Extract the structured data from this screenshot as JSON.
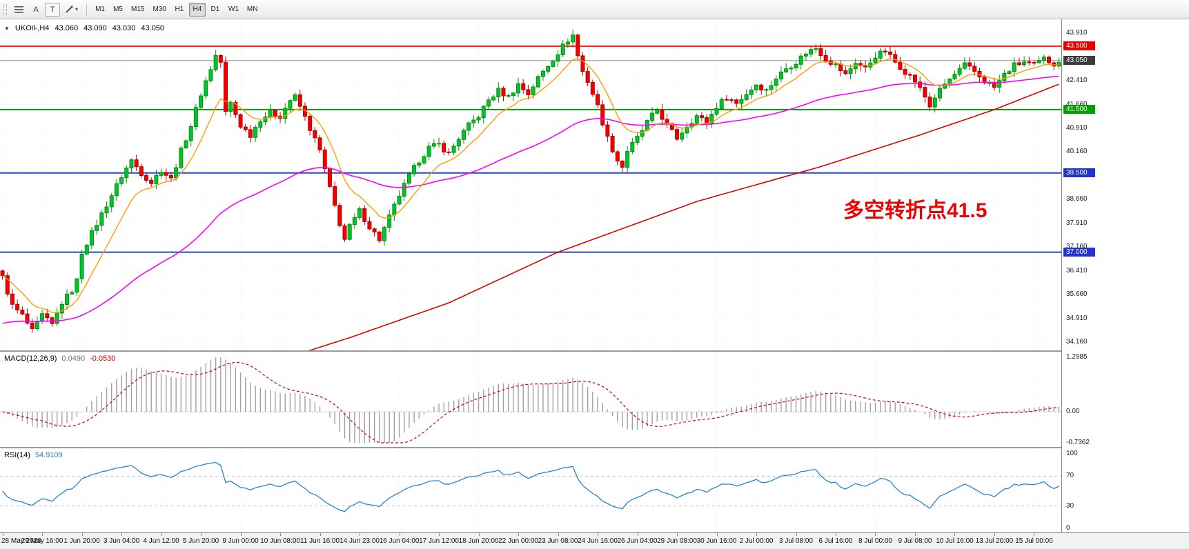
{
  "icons": {
    "symbol_dropdown": "▼",
    "chevron_down": "▾"
  },
  "toolbar": {
    "arrow_label": "A",
    "text_label": "T",
    "timeframes": [
      "M1",
      "M5",
      "M15",
      "M30",
      "H1",
      "H4",
      "D1",
      "W1",
      "MN"
    ],
    "active_timeframe": "H4"
  },
  "main_chart": {
    "symbol_info": {
      "symbol": "UKOil-,H4",
      "open": "43.060",
      "high": "43.090",
      "low": "43.030",
      "close": "43.050"
    },
    "annotation": {
      "text": "多空转折点41.5",
      "color": "#ee0000"
    },
    "price_axis": {
      "min": 33.9,
      "max": 44.35,
      "ticks": [
        {
          "p": 43.91,
          "t": "43.910"
        },
        {
          "p": 43.16,
          "t": "43.160"
        },
        {
          "p": 42.41,
          "t": "42.410"
        },
        {
          "p": 41.66,
          "t": "41.660"
        },
        {
          "p": 40.91,
          "t": "40.910"
        },
        {
          "p": 40.16,
          "t": "40.160"
        },
        {
          "p": 39.41,
          "t": "39.410"
        },
        {
          "p": 38.66,
          "t": "38.660"
        },
        {
          "p": 37.91,
          "t": "37.910"
        },
        {
          "p": 37.16,
          "t": "37.160"
        },
        {
          "p": 36.41,
          "t": "36.410"
        },
        {
          "p": 35.66,
          "t": "35.660"
        },
        {
          "p": 34.91,
          "t": "34.910"
        },
        {
          "p": 34.16,
          "t": "34.160"
        }
      ]
    },
    "hlines": [
      {
        "price": 43.5,
        "color": "#ff2020",
        "w": 2
      },
      {
        "price": 43.05,
        "color": "#909090",
        "w": 1
      },
      {
        "price": 41.5,
        "color": "#00a000",
        "w": 2
      },
      {
        "price": 39.5,
        "color": "#2244dd",
        "w": 2
      },
      {
        "price": 37.0,
        "color": "#2244dd",
        "w": 2
      }
    ],
    "badges": [
      {
        "text": "43.500",
        "price": 43.5,
        "color": "#e80000"
      },
      {
        "text": "43.050",
        "price": 43.05,
        "color": "#3c3c3c"
      },
      {
        "text": "41.500",
        "price": 41.5,
        "color": "#00a000"
      },
      {
        "text": "39.500",
        "price": 39.5,
        "color": "#2233cc"
      },
      {
        "text": "37.000",
        "price": 37.0,
        "color": "#2233cc"
      }
    ],
    "candle_colors": {
      "up_fill": "#00c437",
      "up_stroke": "#089000",
      "down_fill": "#f40000",
      "down_stroke": "#b40000"
    },
    "ma_fast": {
      "period": 10,
      "color": "#ff9c00"
    },
    "ma_mid": {
      "period": 60,
      "seed": 34.7,
      "color": "#ff00ff"
    },
    "ma_slow": {
      "color": "#dc0000",
      "anchors": [
        [
          58,
          33.7
        ],
        [
          70,
          34.3
        ],
        [
          90,
          35.4
        ],
        [
          112,
          37.0
        ],
        [
          140,
          38.6
        ],
        [
          165,
          39.7
        ],
        [
          185,
          40.7
        ],
        [
          200,
          41.5
        ],
        [
          213,
          42.3
        ]
      ]
    },
    "candles": {
      "count": 214,
      "anchors": [
        [
          0,
          36.2
        ],
        [
          2,
          35.3
        ],
        [
          4,
          35.0
        ],
        [
          6,
          34.5
        ],
        [
          8,
          35.0
        ],
        [
          10,
          34.7
        ],
        [
          12,
          35.4
        ],
        [
          14,
          35.8
        ],
        [
          15,
          36.1
        ],
        [
          16,
          37.0
        ],
        [
          18,
          37.6
        ],
        [
          20,
          38.2
        ],
        [
          22,
          38.8
        ],
        [
          24,
          39.4
        ],
        [
          26,
          39.9
        ],
        [
          28,
          39.5
        ],
        [
          30,
          39.2
        ],
        [
          32,
          39.6
        ],
        [
          34,
          39.3
        ],
        [
          36,
          40.2
        ],
        [
          38,
          41.0
        ],
        [
          40,
          42.0
        ],
        [
          42,
          42.8
        ],
        [
          43,
          43.2
        ],
        [
          44,
          43.0
        ],
        [
          45,
          41.4
        ],
        [
          46,
          41.7
        ],
        [
          48,
          41.0
        ],
        [
          50,
          40.7
        ],
        [
          52,
          41.2
        ],
        [
          54,
          41.4
        ],
        [
          56,
          41.3
        ],
        [
          58,
          41.8
        ],
        [
          59,
          41.9
        ],
        [
          60,
          41.6
        ],
        [
          62,
          40.9
        ],
        [
          64,
          40.2
        ],
        [
          66,
          39.0
        ],
        [
          68,
          37.9
        ],
        [
          69,
          37.4
        ],
        [
          70,
          37.8
        ],
        [
          72,
          38.3
        ],
        [
          74,
          37.8
        ],
        [
          76,
          37.4
        ],
        [
          78,
          38.1
        ],
        [
          80,
          38.8
        ],
        [
          82,
          39.4
        ],
        [
          84,
          39.9
        ],
        [
          86,
          40.3
        ],
        [
          88,
          40.4
        ],
        [
          90,
          40.1
        ],
        [
          92,
          40.6
        ],
        [
          94,
          41.0
        ],
        [
          96,
          41.3
        ],
        [
          98,
          41.8
        ],
        [
          100,
          42.1
        ],
        [
          102,
          41.9
        ],
        [
          104,
          42.3
        ],
        [
          106,
          42.0
        ],
        [
          108,
          42.5
        ],
        [
          110,
          42.9
        ],
        [
          112,
          43.3
        ],
        [
          114,
          43.7
        ],
        [
          115,
          43.85
        ],
        [
          116,
          43.2
        ],
        [
          117,
          42.7
        ],
        [
          118,
          42.4
        ],
        [
          120,
          41.6
        ],
        [
          122,
          40.6
        ],
        [
          124,
          39.9
        ],
        [
          125,
          39.7
        ],
        [
          126,
          40.2
        ],
        [
          128,
          40.6
        ],
        [
          130,
          41.1
        ],
        [
          132,
          41.5
        ],
        [
          134,
          41.0
        ],
        [
          136,
          40.6
        ],
        [
          138,
          41.0
        ],
        [
          140,
          41.3
        ],
        [
          142,
          41.1
        ],
        [
          144,
          41.6
        ],
        [
          146,
          41.9
        ],
        [
          148,
          41.7
        ],
        [
          150,
          42.0
        ],
        [
          152,
          42.3
        ],
        [
          154,
          42.1
        ],
        [
          156,
          42.5
        ],
        [
          158,
          42.8
        ],
        [
          160,
          43.0
        ],
        [
          162,
          43.3
        ],
        [
          164,
          43.45
        ],
        [
          166,
          43.1
        ],
        [
          168,
          42.9
        ],
        [
          170,
          42.6
        ],
        [
          172,
          43.0
        ],
        [
          174,
          42.8
        ],
        [
          176,
          43.2
        ],
        [
          178,
          43.35
        ],
        [
          180,
          43.0
        ],
        [
          182,
          42.7
        ],
        [
          184,
          42.4
        ],
        [
          186,
          41.9
        ],
        [
          187,
          41.6
        ],
        [
          188,
          41.9
        ],
        [
          190,
          42.3
        ],
        [
          192,
          42.6
        ],
        [
          194,
          42.9
        ],
        [
          196,
          42.7
        ],
        [
          198,
          42.4
        ],
        [
          200,
          42.2
        ],
        [
          202,
          42.6
        ],
        [
          204,
          42.9
        ],
        [
          206,
          43.0
        ],
        [
          208,
          42.9
        ],
        [
          210,
          43.1
        ],
        [
          212,
          42.95
        ],
        [
          213,
          43.05
        ]
      ]
    }
  },
  "macd_panel": {
    "label": "MACD(12,26,9)",
    "value_main": "0.0490",
    "value_signal": "-0.0530",
    "params": {
      "fast": 12,
      "slow": 26,
      "signal": 9
    },
    "axis": {
      "max": 1.2985,
      "min": -0.7362,
      "tick_values": [
        1.2985,
        0,
        -0.7362
      ],
      "tick_labels": [
        "1.2985",
        "0.00",
        "-0.7362"
      ]
    },
    "colors": {
      "histogram": "#a0a0a0",
      "signal": "#d40000"
    }
  },
  "rsi_panel": {
    "label": "RSI(14)",
    "value": "54.9109",
    "period": 14,
    "color": "#2086d2",
    "levels": [
      70,
      30
    ],
    "axis_ticks": [
      {
        "value": 100,
        "label": "100"
      },
      {
        "value": 70,
        "label": "70"
      },
      {
        "value": 30,
        "label": "30"
      },
      {
        "value": 0,
        "label": "0"
      }
    ]
  },
  "time_axis": {
    "candles_per_label": 8,
    "labels": [
      "28 May 2020",
      "29 May 16:00",
      "1 Jun 20:00",
      "3 Jun 04:00",
      "4 Jun 12:00",
      "5 Jun 20:00",
      "9 Jun 00:00",
      "10 Jun 08:00",
      "11 Jun 16:00",
      "14 Jun 23:00",
      "16 Jun 04:00",
      "17 Jun 12:00",
      "18 Jun 20:00",
      "22 Jun 00:00",
      "23 Jun 08:00",
      "24 Jun 16:00",
      "26 Jun 04:00",
      "29 Jun 08:00",
      "30 Jun 16:00",
      "2 Jul 00:00",
      "3 Jul 08:00",
      "6 Jul 16:00",
      "8 Jul 00:00",
      "9 Jul 08:00",
      "10 Jul 16:00",
      "13 Jul 20:00",
      "15 Jul 00:00"
    ]
  }
}
